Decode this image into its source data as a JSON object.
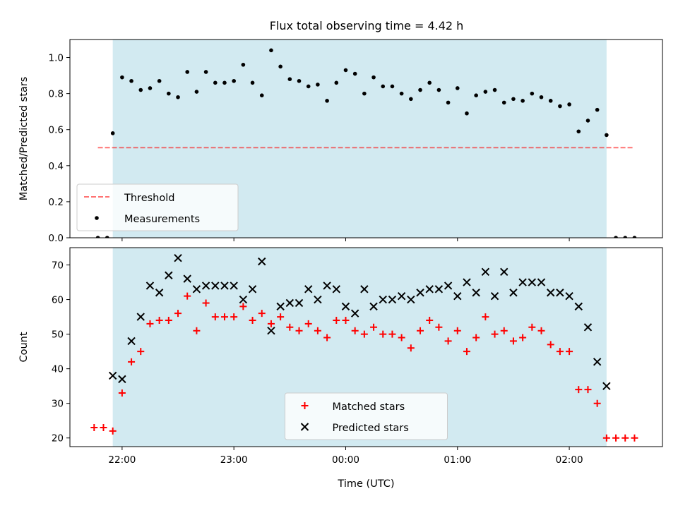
{
  "title": "Flux total observing time = 4.42 h",
  "colors": {
    "span": "#add8e6",
    "threshold": "#ff0000",
    "measurement": "#000000",
    "matched": "#ff0000",
    "predicted": "#000000"
  },
  "chart_data": [
    {
      "type": "scatter",
      "ylabel": "Matched/Predicted stars",
      "ylim": [
        0,
        1.1
      ],
      "yticks": [
        "0.0",
        "0.2",
        "0.4",
        "0.6",
        "0.8",
        "1.0"
      ],
      "xlim": [
        "21:32",
        "02:50"
      ],
      "xticks": [
        "22:00",
        "23:00",
        "00:00",
        "01:00",
        "02:00"
      ],
      "show_xticklabels": false,
      "observing_span": [
        "21:55",
        "02:20"
      ],
      "threshold": {
        "name": "Threshold",
        "value": 0.5,
        "x": [
          "21:47",
          "02:35"
        ],
        "style": "dashed"
      },
      "legend": {
        "position": "lower-left",
        "entries": [
          "Threshold",
          "Measurements"
        ]
      },
      "series": [
        {
          "name": "Measurements",
          "marker": "dot",
          "x": [
            "21:47",
            "21:52",
            "21:55",
            "22:00",
            "22:05",
            "22:10",
            "22:15",
            "22:20",
            "22:25",
            "22:30",
            "22:35",
            "22:40",
            "22:45",
            "22:50",
            "22:55",
            "23:00",
            "23:05",
            "23:10",
            "23:15",
            "23:20",
            "23:25",
            "23:30",
            "23:35",
            "23:40",
            "23:45",
            "23:50",
            "23:55",
            "00:00",
            "00:05",
            "00:10",
            "00:15",
            "00:20",
            "00:25",
            "00:30",
            "00:35",
            "00:40",
            "00:45",
            "00:50",
            "00:55",
            "01:00",
            "01:05",
            "01:10",
            "01:15",
            "01:20",
            "01:25",
            "01:30",
            "01:35",
            "01:40",
            "01:45",
            "01:50",
            "01:55",
            "02:00",
            "02:05",
            "02:10",
            "02:15",
            "02:20",
            "02:25",
            "02:30",
            "02:35"
          ],
          "y": [
            0.0,
            0.0,
            0.58,
            0.89,
            0.87,
            0.82,
            0.83,
            0.87,
            0.8,
            0.78,
            0.92,
            0.81,
            0.92,
            0.86,
            0.86,
            0.87,
            0.96,
            0.86,
            0.79,
            1.04,
            0.95,
            0.88,
            0.87,
            0.84,
            0.85,
            0.76,
            0.86,
            0.93,
            0.91,
            0.8,
            0.89,
            0.84,
            0.84,
            0.8,
            0.77,
            0.82,
            0.86,
            0.82,
            0.75,
            0.83,
            0.69,
            0.79,
            0.81,
            0.82,
            0.75,
            0.77,
            0.76,
            0.8,
            0.78,
            0.76,
            0.73,
            0.74,
            0.59,
            0.65,
            0.71,
            0.57,
            0.0,
            0.0,
            0.0
          ]
        }
      ]
    },
    {
      "type": "scatter",
      "ylabel": "Count",
      "xlabel": "Time (UTC)",
      "ylim": [
        17.5,
        75
      ],
      "yticks": [
        "20",
        "30",
        "40",
        "50",
        "60",
        "70"
      ],
      "xlim": [
        "21:32",
        "02:50"
      ],
      "xticks": [
        "22:00",
        "23:00",
        "00:00",
        "01:00",
        "02:00"
      ],
      "observing_span": [
        "21:55",
        "02:20"
      ],
      "legend": {
        "position": "lower-center",
        "entries": [
          "Matched stars",
          "Predicted stars"
        ]
      },
      "series": [
        {
          "name": "Matched stars",
          "marker": "plus",
          "x": [
            "21:45",
            "21:50",
            "21:55",
            "22:00",
            "22:05",
            "22:10",
            "22:15",
            "22:20",
            "22:25",
            "22:30",
            "22:35",
            "22:40",
            "22:45",
            "22:50",
            "22:55",
            "23:00",
            "23:05",
            "23:10",
            "23:15",
            "23:20",
            "23:25",
            "23:30",
            "23:35",
            "23:40",
            "23:45",
            "23:50",
            "23:55",
            "00:00",
            "00:05",
            "00:10",
            "00:15",
            "00:20",
            "00:25",
            "00:30",
            "00:35",
            "00:40",
            "00:45",
            "00:50",
            "00:55",
            "01:00",
            "01:05",
            "01:10",
            "01:15",
            "01:20",
            "01:25",
            "01:30",
            "01:35",
            "01:40",
            "01:45",
            "01:50",
            "01:55",
            "02:00",
            "02:05",
            "02:10",
            "02:15",
            "02:20",
            "02:25",
            "02:30",
            "02:35"
          ],
          "y": [
            23,
            23,
            22,
            33,
            42,
            45,
            53,
            54,
            54,
            56,
            61,
            51,
            59,
            55,
            55,
            55,
            58,
            54,
            56,
            53,
            55,
            52,
            51,
            53,
            51,
            49,
            54,
            54,
            51,
            50,
            52,
            50,
            50,
            49,
            46,
            51,
            54,
            52,
            48,
            51,
            45,
            49,
            55,
            50,
            51,
            48,
            49,
            52,
            51,
            47,
            45,
            45,
            34,
            34,
            30,
            20,
            20,
            20,
            20
          ]
        },
        {
          "name": "Predicted stars",
          "marker": "x",
          "x": [
            "21:55",
            "22:00",
            "22:05",
            "22:10",
            "22:15",
            "22:20",
            "22:25",
            "22:30",
            "22:35",
            "22:40",
            "22:45",
            "22:50",
            "22:55",
            "23:00",
            "23:05",
            "23:10",
            "23:15",
            "23:20",
            "23:25",
            "23:30",
            "23:35",
            "23:40",
            "23:45",
            "23:50",
            "23:55",
            "00:00",
            "00:05",
            "00:10",
            "00:15",
            "00:20",
            "00:25",
            "00:30",
            "00:35",
            "00:40",
            "00:45",
            "00:50",
            "00:55",
            "01:00",
            "01:05",
            "01:10",
            "01:15",
            "01:20",
            "01:25",
            "01:30",
            "01:35",
            "01:40",
            "01:45",
            "01:50",
            "01:55",
            "02:00",
            "02:05",
            "02:10",
            "02:15",
            "02:20"
          ],
          "y": [
            38,
            37,
            48,
            55,
            64,
            62,
            67,
            72,
            66,
            63,
            64,
            64,
            64,
            64,
            60,
            63,
            71,
            51,
            58,
            59,
            59,
            63,
            60,
            64,
            63,
            58,
            56,
            63,
            58,
            60,
            60,
            61,
            60,
            62,
            63,
            63,
            64,
            61,
            65,
            62,
            68,
            61,
            68,
            62,
            65,
            65,
            65,
            62,
            62,
            61,
            58,
            52,
            42,
            35
          ]
        }
      ]
    }
  ]
}
